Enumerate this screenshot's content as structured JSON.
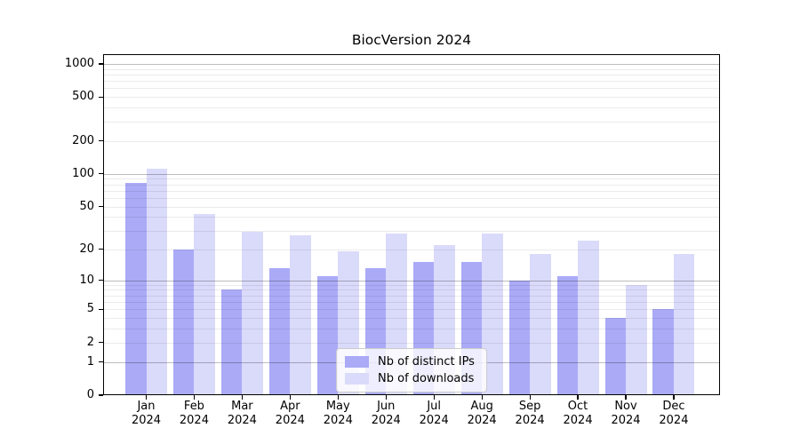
{
  "chart_data": {
    "type": "bar",
    "title": "BiocVersion 2024",
    "categories": [
      "Jan",
      "Feb",
      "Mar",
      "Apr",
      "May",
      "Jun",
      "Jul",
      "Aug",
      "Sep",
      "Oct",
      "Nov",
      "Dec"
    ],
    "year_label": "2024",
    "series": [
      {
        "name": "Nb of distinct IPs",
        "color": "#aaaaf7",
        "values": [
          82,
          20,
          8,
          13,
          11,
          13,
          15,
          15,
          10,
          11,
          4,
          5
        ]
      },
      {
        "name": "Nb of downloads",
        "color": "#dadafa",
        "values": [
          112,
          43,
          29,
          27,
          19,
          28,
          22,
          28,
          18,
          24,
          9,
          18
        ]
      }
    ],
    "y_ticks": [
      0,
      1,
      2,
      5,
      10,
      20,
      50,
      100,
      200,
      500,
      1000
    ],
    "y_scale": "log10(1+x)",
    "ylim": [
      0,
      1230
    ],
    "xlabel": "",
    "ylabel": "",
    "grid": "horizontal",
    "legend_position": "lower-center",
    "axis_color": "#000000",
    "background_color": "#ffffff"
  }
}
